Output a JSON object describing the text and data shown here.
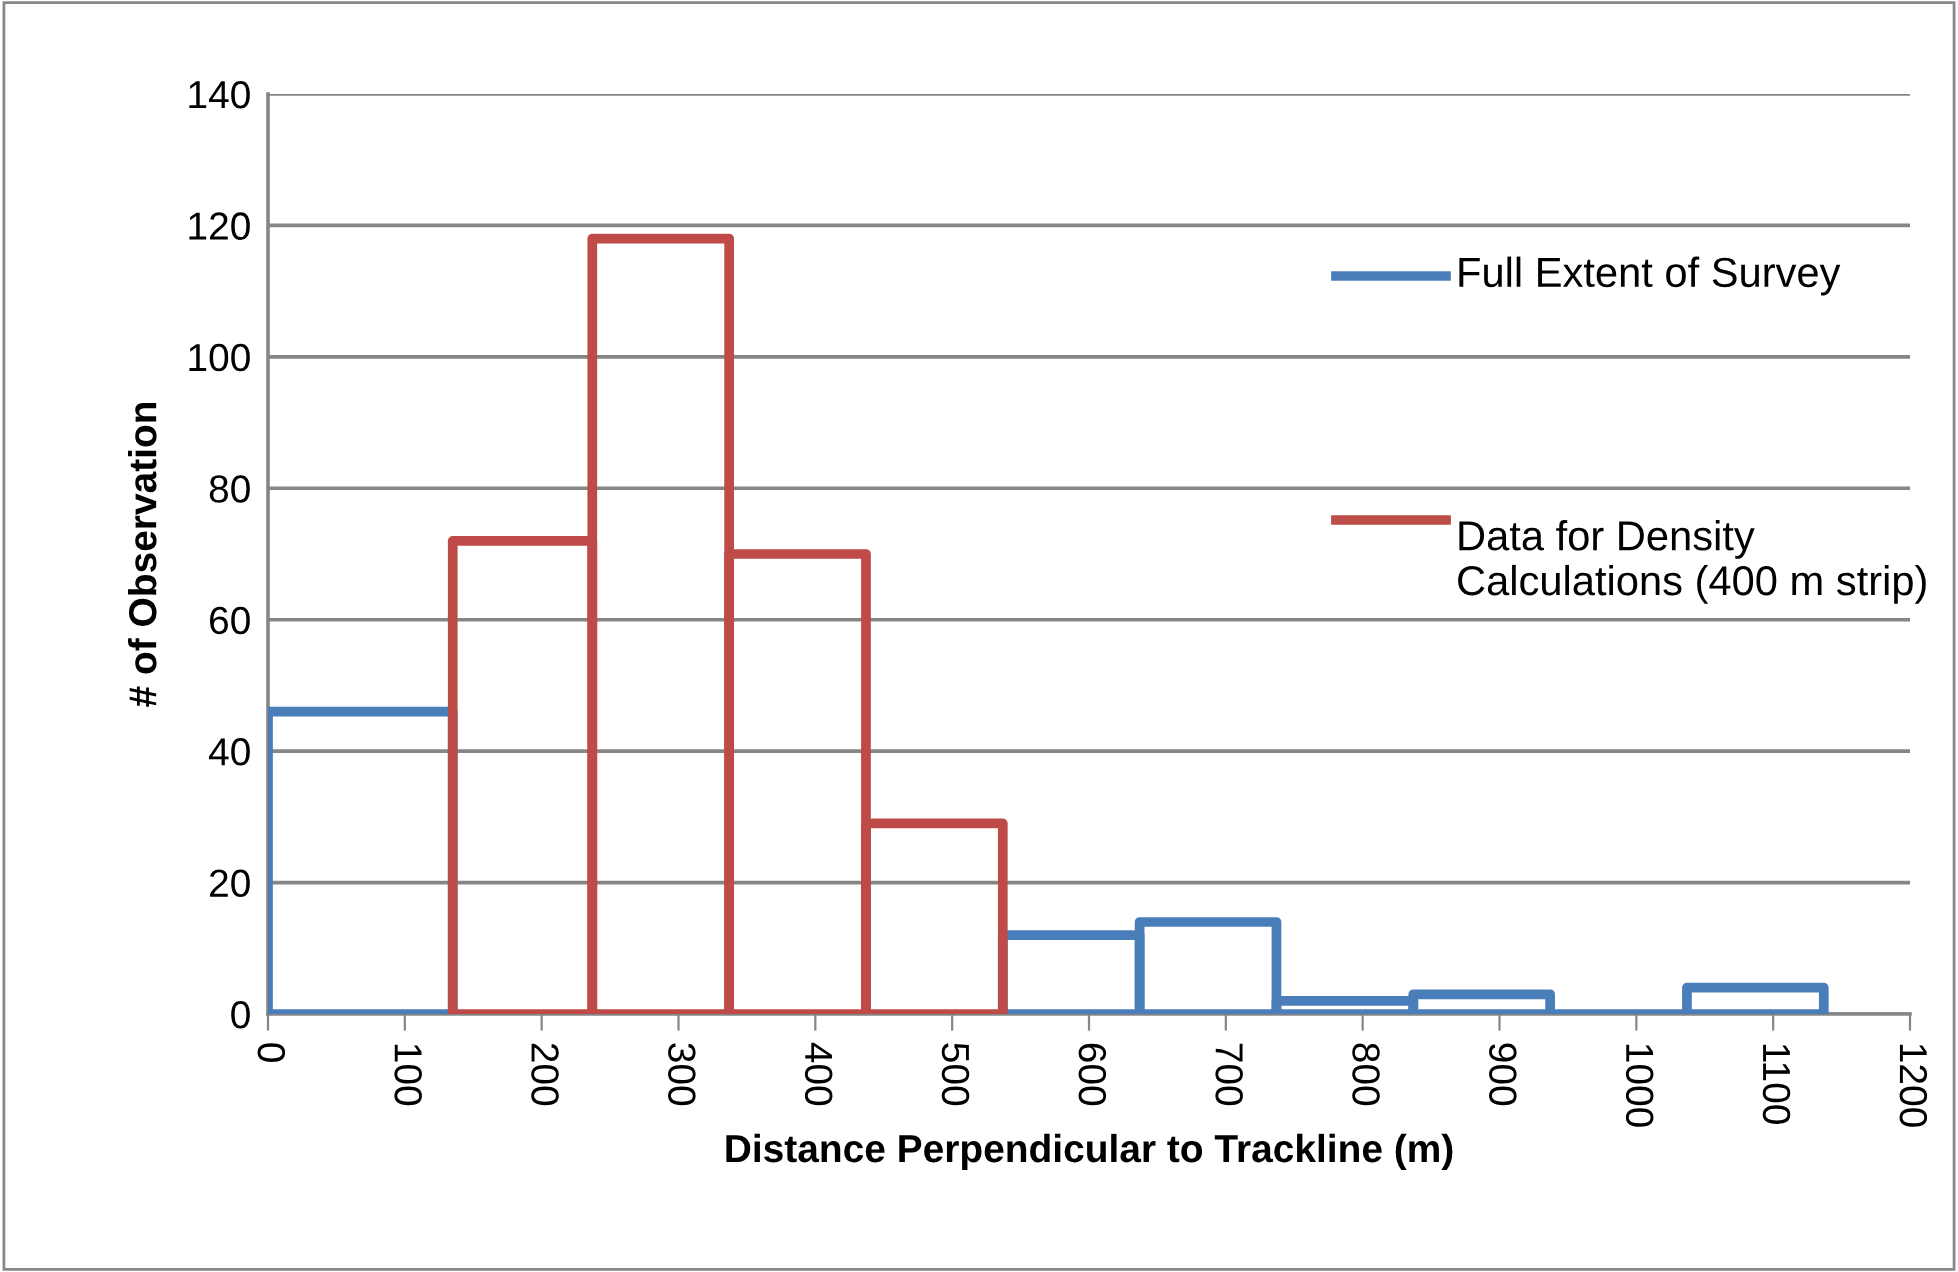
{
  "chart_data": {
    "type": "histogram",
    "xlabel": "Distance Perpendicular to Trackline (m)",
    "ylabel": "# of Observation",
    "bins": [
      0,
      135,
      237,
      337,
      437,
      537,
      637,
      737,
      837,
      937,
      1037,
      1137
    ],
    "series": [
      {
        "name": "Full Extent of Survey",
        "color": "#4a7ebb",
        "values": [
          46,
          null,
          null,
          null,
          null,
          12,
          14,
          2,
          3,
          0,
          4
        ]
      },
      {
        "name": "Data for Density Calculations (400 m strip)",
        "color": "#be4b48",
        "values": [
          null,
          72,
          118,
          70,
          29,
          null,
          null,
          null,
          null,
          null,
          null
        ]
      }
    ],
    "xlim": [
      0,
      1200
    ],
    "xticks": [
      0,
      100,
      200,
      300,
      400,
      500,
      600,
      700,
      800,
      900,
      1000,
      1100,
      1200
    ],
    "ylim": [
      0,
      140
    ],
    "yticks": [
      0,
      20,
      40,
      60,
      80,
      100,
      120,
      140
    ],
    "grid": "y",
    "legend": "right"
  }
}
